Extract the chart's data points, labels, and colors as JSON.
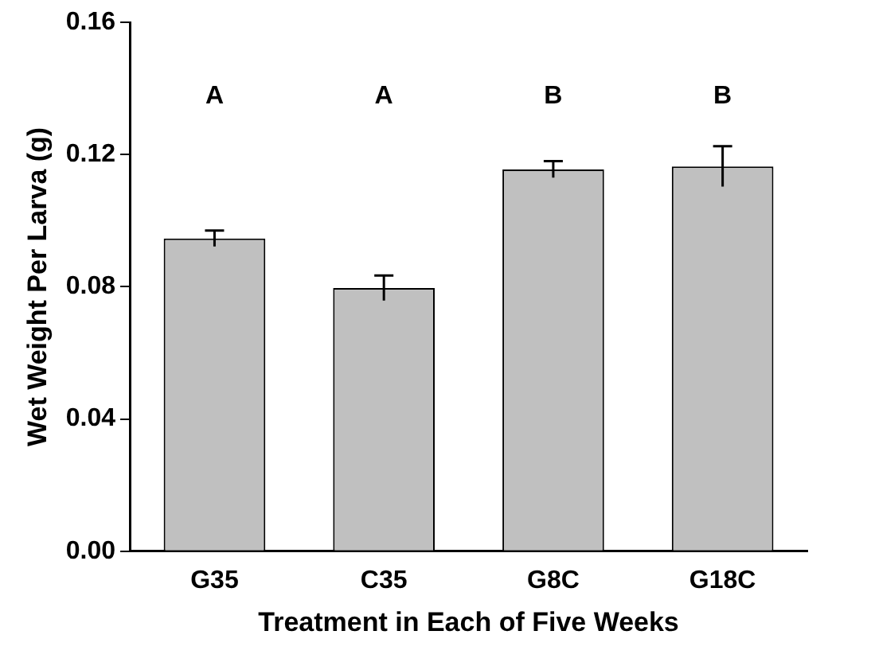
{
  "chart_data": {
    "type": "bar",
    "xlabel": "Treatment in Each of Five Weeks",
    "ylabel": "Wet Weight Per Larva (g)",
    "categories": [
      "G35",
      "C35",
      "G8C",
      "G18C"
    ],
    "values": [
      0.0946,
      0.0796,
      0.1155,
      0.1164
    ],
    "errors": [
      0.0024,
      0.0038,
      0.0025,
      0.0061
    ],
    "color": "#c0c0c0",
    "ylim": [
      0,
      0.16
    ],
    "yticks": [
      {
        "value": 0,
        "label": "0.00"
      },
      {
        "value": 0.04,
        "label": "0.04"
      },
      {
        "value": 0.08,
        "label": "0.08"
      },
      {
        "value": 0.12,
        "label": "0.12"
      },
      {
        "value": 0.16,
        "label": "0.16"
      }
    ],
    "grid": false,
    "legend": false,
    "annotations": [
      "A",
      "A",
      "B",
      "B"
    ]
  }
}
